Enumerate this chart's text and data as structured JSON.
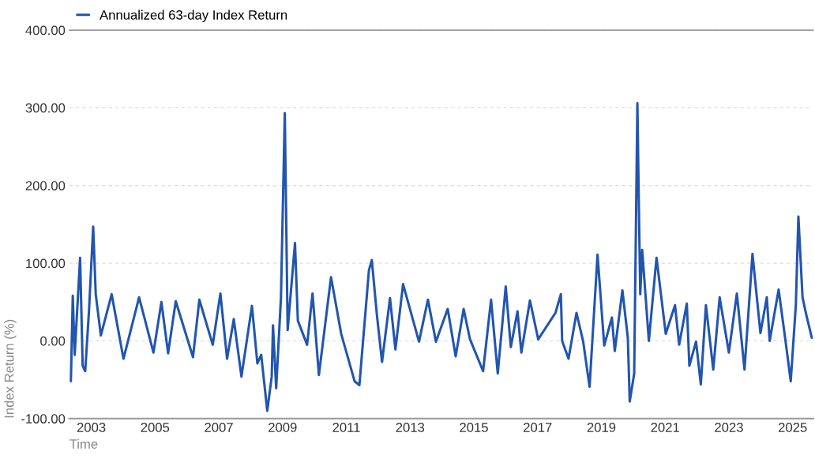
{
  "chart_data": {
    "type": "line",
    "xlabel": "Time",
    "ylabel": "Index Return (%)",
    "xlim": [
      2002.31,
      2025.65
    ],
    "ylim": [
      -100,
      400
    ],
    "xticks": [
      {
        "value": 2003,
        "label": "2003"
      },
      {
        "value": 2005,
        "label": "2005"
      },
      {
        "value": 2007,
        "label": "2007"
      },
      {
        "value": 2009,
        "label": "2009"
      },
      {
        "value": 2011,
        "label": "2011"
      },
      {
        "value": 2013,
        "label": "2013"
      },
      {
        "value": 2015,
        "label": "2015"
      },
      {
        "value": 2017,
        "label": "2017"
      },
      {
        "value": 2019,
        "label": "2019"
      },
      {
        "value": 2021,
        "label": "2021"
      },
      {
        "value": 2023,
        "label": "2023"
      },
      {
        "value": 2025,
        "label": "2025"
      }
    ],
    "yticks": [
      {
        "value": -100,
        "label": "-100.00"
      },
      {
        "value": 0,
        "label": "0.00"
      },
      {
        "value": 100,
        "label": "100.00"
      },
      {
        "value": 200,
        "label": "200.00"
      },
      {
        "value": 300,
        "label": "300.00"
      },
      {
        "value": 400,
        "label": "400.00"
      }
    ],
    "grid": "y",
    "legend": "top left",
    "marker": "none",
    "line_style": "solid",
    "series": [
      {
        "name": "Annualized 63-day Index Return",
        "color": "#2255b0",
        "x": [
          2002.36,
          2002.42,
          2002.48,
          2002.65,
          2002.73,
          2002.81,
          2002.93,
          2003.06,
          2003.14,
          2003.3,
          2003.64,
          2004.01,
          2004.5,
          2004.95,
          2005.2,
          2005.41,
          2005.65,
          2006.19,
          2006.39,
          2006.81,
          2007.05,
          2007.26,
          2007.47,
          2007.71,
          2008.04,
          2008.21,
          2008.33,
          2008.52,
          2008.66,
          2008.7,
          2008.8,
          2008.95,
          2009.07,
          2009.16,
          2009.39,
          2009.48,
          2009.77,
          2009.94,
          2010.14,
          2010.52,
          2010.84,
          2011.26,
          2011.41,
          2011.71,
          2011.8,
          2011.96,
          2012.12,
          2012.37,
          2012.54,
          2012.78,
          2013.28,
          2013.56,
          2013.81,
          2014.18,
          2014.43,
          2014.68,
          2014.88,
          2015.29,
          2015.54,
          2015.75,
          2016.0,
          2016.16,
          2016.37,
          2016.49,
          2016.76,
          2017.02,
          2017.56,
          2017.73,
          2017.77,
          2017.97,
          2018.22,
          2018.43,
          2018.63,
          2018.88,
          2019.09,
          2019.33,
          2019.42,
          2019.66,
          2019.83,
          2019.89,
          2020.03,
          2020.13,
          2020.17,
          2020.22,
          2020.28,
          2020.49,
          2020.73,
          2021.02,
          2021.31,
          2021.44,
          2021.68,
          2021.76,
          2021.97,
          2022.12,
          2022.28,
          2022.51,
          2022.71,
          2023.0,
          2023.25,
          2023.49,
          2023.74,
          2023.99,
          2024.19,
          2024.28,
          2024.56,
          2024.77,
          2024.94,
          2025.1,
          2025.18,
          2025.31,
          2025.43,
          2025.6
        ],
        "values": [
          -52,
          58,
          -18,
          107,
          -32,
          -39,
          40,
          147,
          60,
          7,
          60,
          -23,
          56,
          -15,
          50,
          -16,
          51,
          -21,
          53,
          -5,
          61,
          -23,
          28,
          -46,
          45,
          -29,
          -18,
          -90,
          -46,
          20,
          -61,
          56,
          293,
          14,
          126,
          26,
          -5,
          61,
          -44,
          82,
          9,
          -52,
          -57,
          91,
          104,
          33,
          -27,
          55,
          -11,
          73,
          -1,
          53,
          -1,
          41,
          -20,
          41,
          2,
          -39,
          53,
          -42,
          70,
          -8,
          38,
          -15,
          52,
          2,
          36,
          60,
          0,
          -23,
          36,
          -1,
          -59,
          111,
          -6,
          30,
          -13,
          65,
          4,
          -78,
          -42,
          306,
          191,
          60,
          117,
          0,
          107,
          9,
          46,
          -5,
          48,
          -32,
          -1,
          -56,
          46,
          -37,
          56,
          -15,
          61,
          -37,
          112,
          10,
          56,
          0,
          66,
          2,
          -52,
          46,
          160,
          56,
          33,
          4
        ]
      }
    ]
  }
}
